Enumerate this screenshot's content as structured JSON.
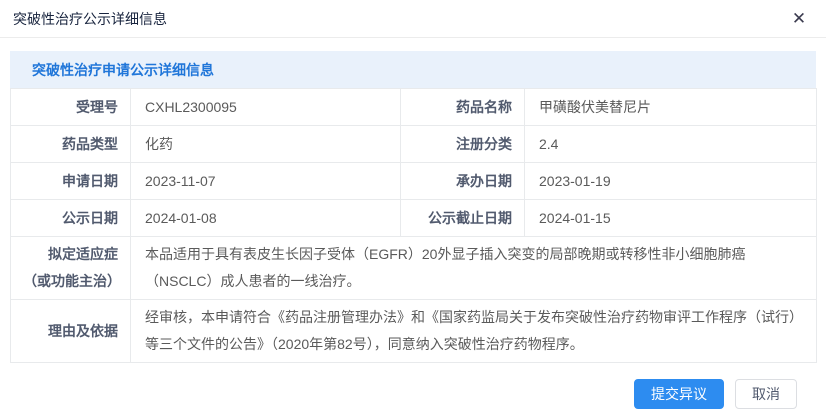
{
  "dialog": {
    "title": "突破性治疗公示详细信息",
    "close_icon": "✕"
  },
  "section": {
    "heading": "突破性治疗申请公示详细信息"
  },
  "table": {
    "rows": [
      {
        "label1": "受理号",
        "value1": "CXHL2300095",
        "label2": "药品名称",
        "value2": "甲磺酸伏美替尼片"
      },
      {
        "label1": "药品类型",
        "value1": "化药",
        "label2": "注册分类",
        "value2": "2.4"
      },
      {
        "label1": "申请日期",
        "value1": "2023-11-07",
        "label2": "承办日期",
        "value2": "2023-01-19"
      },
      {
        "label1": "公示日期",
        "value1": "2024-01-08",
        "label2": "公示截止日期",
        "value2": "2024-01-15"
      }
    ],
    "full_rows": [
      {
        "label": "拟定适应症（或功能主治）",
        "value": "本品适用于具有表皮生长因子受体（EGFR）20外显子插入突变的局部晚期或转移性非小细胞肺癌（NSCLC）成人患者的一线治疗。"
      },
      {
        "label": "理由及依据",
        "value": "经审核，本申请符合《药品注册管理办法》和《国家药监局关于发布突破性治疗药物审评工作程序（试行）等三个文件的公告》（2020年第82号），同意纳入突破性治疗药物程序。"
      }
    ]
  },
  "footer": {
    "submit_label": "提交异议",
    "cancel_label": "取消"
  },
  "colors": {
    "accent_blue": "#2d8cf0",
    "section_bg": "#e9f1fb",
    "section_text": "#2076d9",
    "table_border": "#e8eaec"
  }
}
